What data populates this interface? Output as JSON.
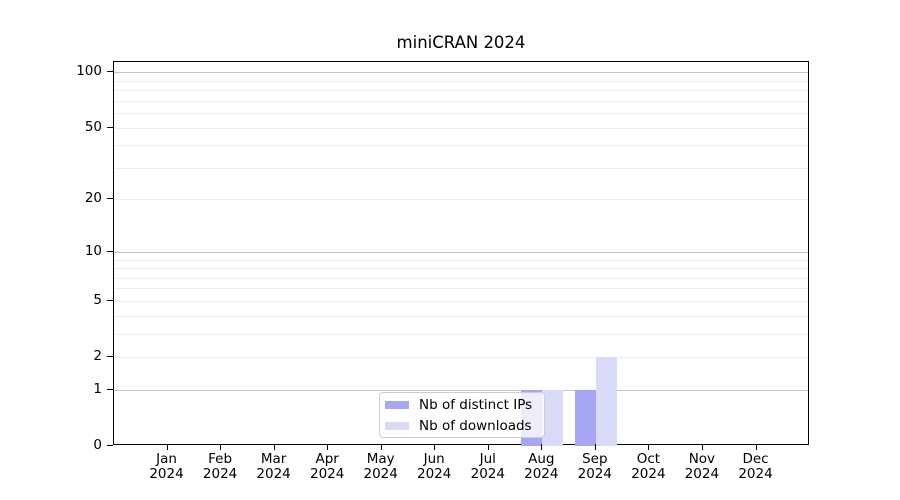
{
  "chart_data": {
    "type": "bar",
    "title": "miniCRAN 2024",
    "categories": [
      "Jan",
      "Feb",
      "Mar",
      "Apr",
      "May",
      "Jun",
      "Jul",
      "Aug",
      "Sep",
      "Oct",
      "Nov",
      "Dec"
    ],
    "year_label": "2024",
    "series": [
      {
        "name": "Nb of distinct IPs",
        "color": "#a6a6f4",
        "values": [
          0,
          0,
          0,
          0,
          0,
          0,
          0,
          1,
          1,
          0,
          0,
          0
        ]
      },
      {
        "name": "Nb of downloads",
        "color": "#d9d9f8",
        "values": [
          0,
          0,
          0,
          0,
          0,
          0,
          0,
          1,
          2,
          0,
          0,
          0
        ]
      }
    ],
    "yticks": [
      0,
      1,
      2,
      5,
      10,
      20,
      50,
      100
    ],
    "major_grid_values": [
      1,
      10,
      100
    ],
    "minor_grid_values": [
      2,
      3,
      4,
      5,
      6,
      7,
      8,
      9,
      20,
      30,
      40,
      50,
      60,
      70,
      80,
      90
    ],
    "scale": "log1p",
    "ylim": [
      0,
      112
    ],
    "grid": "horizontal",
    "legend_position": "bottom-center",
    "colors": {
      "major_grid": "#c6c6c6",
      "minor_grid": "#ededed",
      "spine": "#000000",
      "text": "#000000",
      "legend_border": "#cccccc"
    }
  }
}
